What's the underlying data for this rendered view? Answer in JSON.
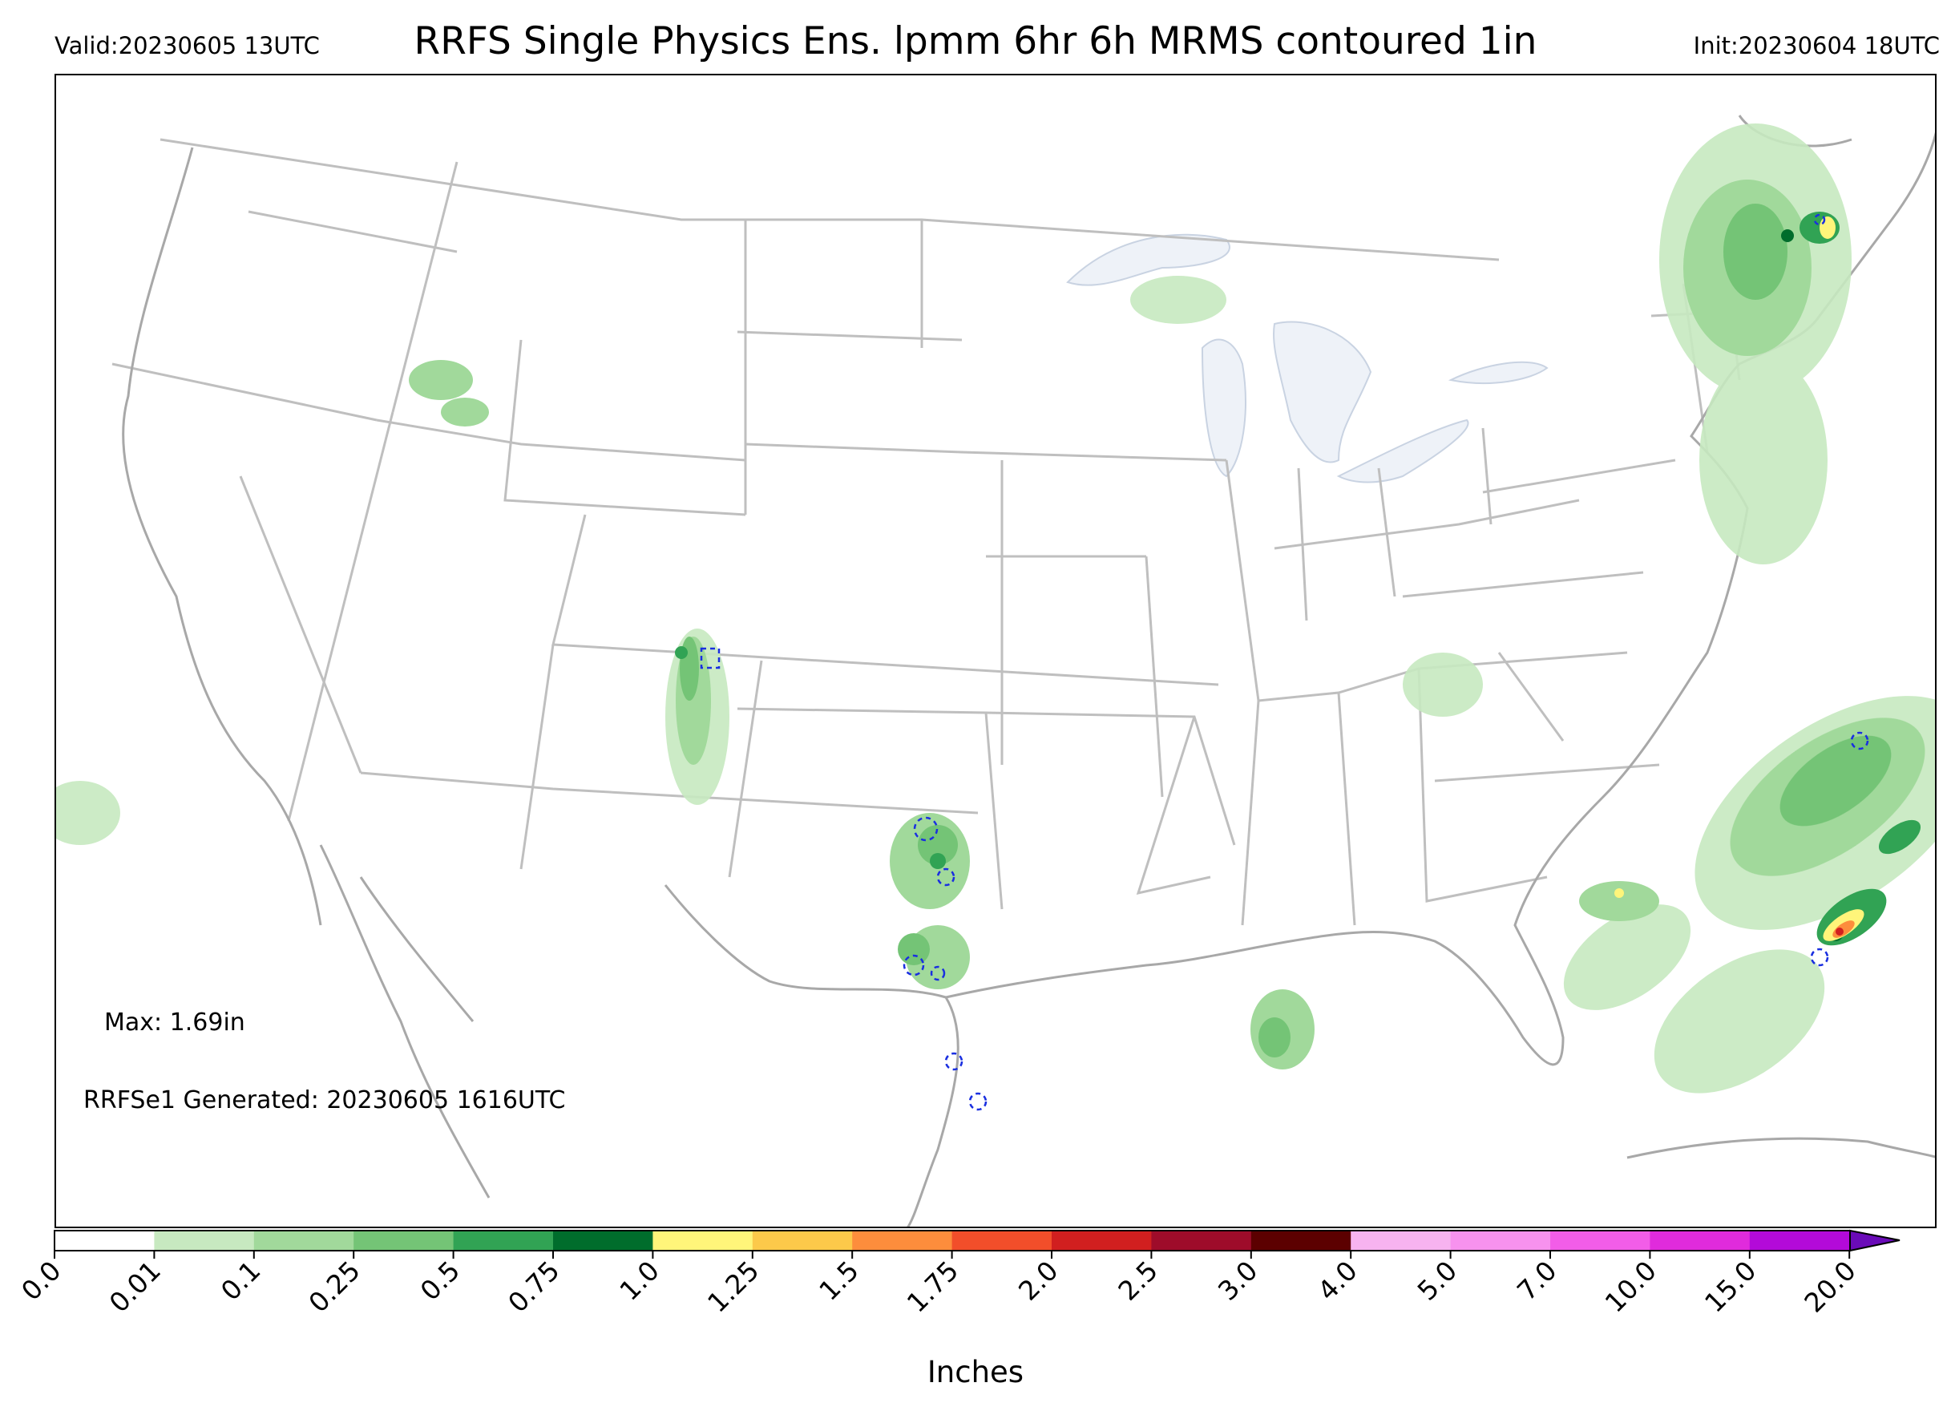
{
  "header": {
    "valid": "Valid:20230605 13UTC",
    "title": "RRFS Single Physics Ens. lpmm 6hr 6h MRMS contoured 1in",
    "init": "Init:20230604 18UTC"
  },
  "map": {
    "max_label": "Max: 1.69in",
    "generated_label": "RRFSe1 Generated: 20230605 1616UTC",
    "colors": {
      "state_lines": "#bfbfbf",
      "coastline": "#a8a8a8",
      "lakes": "#eef2f8",
      "contour_1in": "#1a2fe0"
    }
  },
  "colorbar": {
    "label": "Inches",
    "ticks": [
      "0.0",
      "0.01",
      "0.1",
      "0.25",
      "0.5",
      "0.75",
      "1.0",
      "1.25",
      "1.5",
      "1.75",
      "2.0",
      "2.5",
      "3.0",
      "4.0",
      "5.0",
      "7.0",
      "10.0",
      "15.0",
      "20.0"
    ],
    "colors": [
      "#ffffff",
      "#c7e9c0",
      "#a1d99b",
      "#74c476",
      "#31a354",
      "#006d2c",
      "#fff57a",
      "#fcc94a",
      "#fd8d3c",
      "#f24e2a",
      "#d11f1f",
      "#9e0c2a",
      "#5c0000",
      "#f7b3f0",
      "#f792ee",
      "#f25de8",
      "#e02bdc",
      "#b30ad9",
      "#8a05c7"
    ]
  }
}
